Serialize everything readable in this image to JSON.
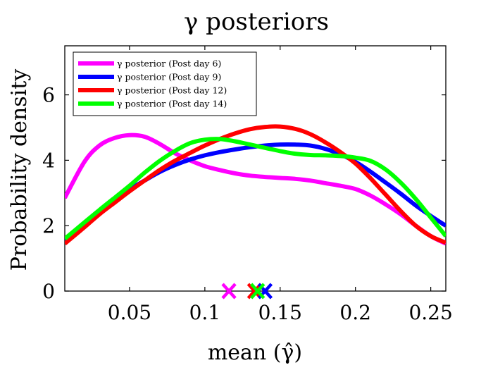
{
  "chart_data": {
    "type": "line",
    "title": "γ posteriors",
    "xlabel": "mean (γ̂)",
    "ylabel": "Probability density",
    "xlim": [
      0.007,
      0.26
    ],
    "ylim": [
      0,
      7.5
    ],
    "xticks": [
      0.05,
      0.1,
      0.15,
      0.2,
      0.25
    ],
    "xtick_labels": [
      "0.05",
      "0.1",
      "0.15",
      "0.2",
      "0.25"
    ],
    "yticks": [
      0,
      2,
      4,
      6
    ],
    "ytick_labels": [
      "0",
      "2",
      "4",
      "6"
    ],
    "legend_position": "top-left",
    "grid": false,
    "series": [
      {
        "name": "γ posterior (Post day 6)",
        "color": "#ff00ff",
        "x": [
          0.007,
          0.02,
          0.03,
          0.04,
          0.05,
          0.06,
          0.07,
          0.08,
          0.09,
          0.1,
          0.11,
          0.12,
          0.13,
          0.14,
          0.15,
          0.16,
          0.17,
          0.18,
          0.19,
          0.2,
          0.21,
          0.22,
          0.23,
          0.24,
          0.25,
          0.26
        ],
        "y": [
          2.85,
          3.95,
          4.45,
          4.68,
          4.77,
          4.72,
          4.5,
          4.22,
          4.0,
          3.82,
          3.7,
          3.6,
          3.53,
          3.49,
          3.46,
          3.43,
          3.38,
          3.3,
          3.22,
          3.12,
          2.92,
          2.65,
          2.35,
          2.0,
          1.68,
          1.45
        ],
        "marker_x": 0.116
      },
      {
        "name": "γ posterior (Post day 9)",
        "color": "#0000ff",
        "x": [
          0.007,
          0.02,
          0.03,
          0.04,
          0.05,
          0.06,
          0.07,
          0.08,
          0.09,
          0.1,
          0.11,
          0.12,
          0.13,
          0.14,
          0.15,
          0.16,
          0.17,
          0.18,
          0.19,
          0.2,
          0.21,
          0.22,
          0.23,
          0.24,
          0.25,
          0.26
        ],
        "y": [
          1.55,
          2.05,
          2.42,
          2.75,
          3.1,
          3.38,
          3.64,
          3.85,
          4.02,
          4.15,
          4.25,
          4.33,
          4.4,
          4.45,
          4.48,
          4.48,
          4.45,
          4.35,
          4.18,
          3.95,
          3.65,
          3.32,
          2.98,
          2.62,
          2.3,
          2.0
        ],
        "marker_x": 0.14
      },
      {
        "name": "γ posterior (Post day 12)",
        "color": "#ff0000",
        "x": [
          0.007,
          0.02,
          0.03,
          0.04,
          0.05,
          0.06,
          0.07,
          0.08,
          0.09,
          0.1,
          0.11,
          0.12,
          0.13,
          0.14,
          0.15,
          0.16,
          0.17,
          0.18,
          0.19,
          0.2,
          0.21,
          0.22,
          0.23,
          0.24,
          0.25,
          0.26
        ],
        "y": [
          1.45,
          1.95,
          2.35,
          2.7,
          3.05,
          3.38,
          3.7,
          3.98,
          4.22,
          4.45,
          4.65,
          4.82,
          4.95,
          5.02,
          5.03,
          4.96,
          4.8,
          4.55,
          4.25,
          3.9,
          3.45,
          2.95,
          2.45,
          2.0,
          1.68,
          1.48
        ],
        "marker_x": 0.133
      },
      {
        "name": "γ posterior (Post day 14)",
        "color": "#00ff00",
        "x": [
          0.007,
          0.02,
          0.03,
          0.04,
          0.05,
          0.06,
          0.07,
          0.08,
          0.09,
          0.1,
          0.11,
          0.12,
          0.13,
          0.14,
          0.15,
          0.16,
          0.17,
          0.18,
          0.19,
          0.2,
          0.21,
          0.22,
          0.23,
          0.24,
          0.25,
          0.26
        ],
        "y": [
          1.6,
          2.1,
          2.48,
          2.85,
          3.22,
          3.62,
          3.98,
          4.28,
          4.52,
          4.63,
          4.65,
          4.58,
          4.48,
          4.38,
          4.28,
          4.2,
          4.16,
          4.15,
          4.13,
          4.08,
          3.98,
          3.72,
          3.32,
          2.82,
          2.25,
          1.68
        ],
        "marker_x": 0.135
      }
    ]
  }
}
